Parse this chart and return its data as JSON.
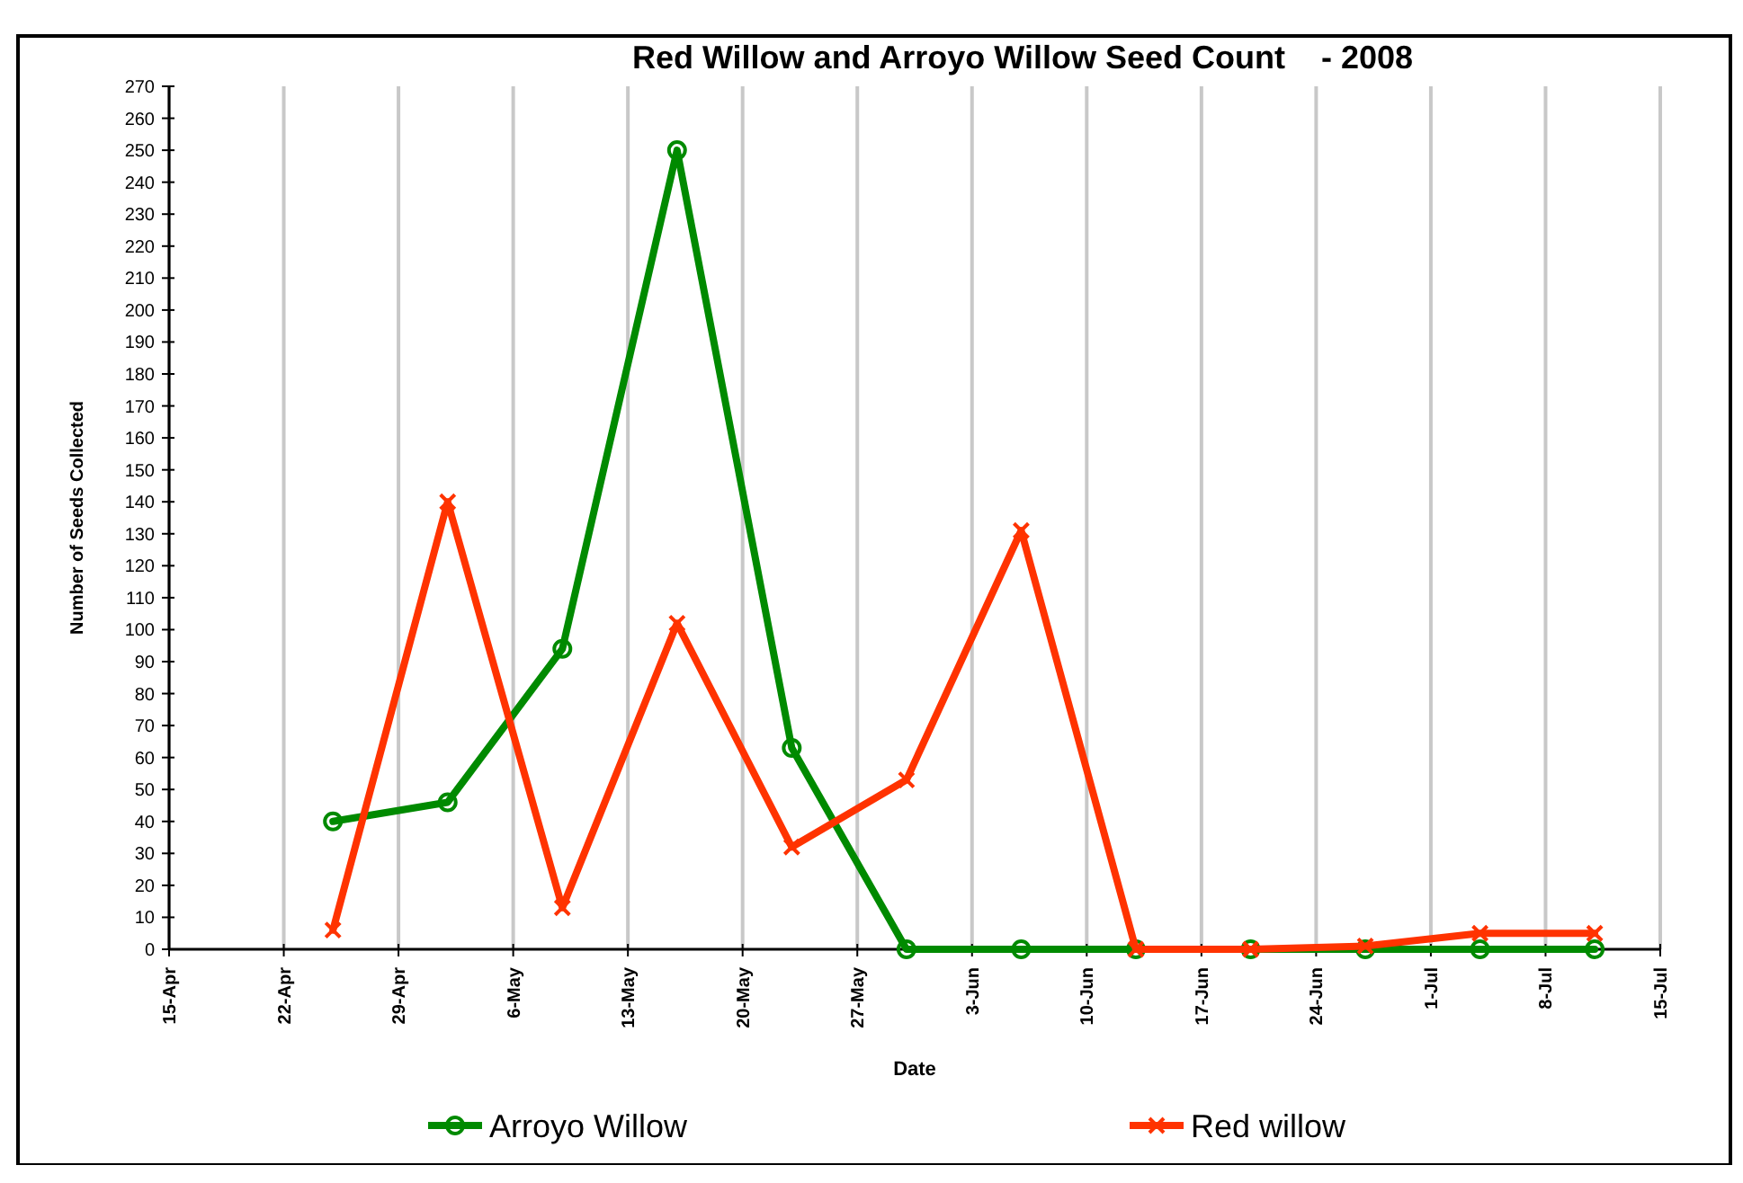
{
  "chart_data": {
    "type": "line",
    "title": "Red Willow and Arroyo Willow Seed Count    - 2008",
    "xlabel": "Date",
    "ylabel": "Number of Seeds Collected",
    "x": [
      "2008-04-25",
      "2008-05-02",
      "2008-05-09",
      "2008-05-16",
      "2008-05-23",
      "2008-05-30",
      "2008-06-06",
      "2008-06-13",
      "2008-06-20",
      "2008-06-27",
      "2008-07-04",
      "2008-07-11"
    ],
    "series": [
      {
        "name": "Arroyo Willow",
        "color": "#008a00",
        "marker": "circle",
        "values": [
          40,
          46,
          94,
          250,
          63,
          0,
          0,
          0,
          0,
          0,
          0,
          0
        ]
      },
      {
        "name": "Red willow",
        "color": "#ff3300",
        "marker": "cross",
        "values": [
          6,
          140,
          13,
          102,
          32,
          53,
          131,
          0,
          0,
          1,
          5,
          5
        ]
      }
    ],
    "xlim": [
      "2008-04-15",
      "2008-07-15"
    ],
    "xticks": [
      {
        "value": "2008-04-15",
        "label": "15-Apr"
      },
      {
        "value": "2008-04-22",
        "label": "22-Apr"
      },
      {
        "value": "2008-04-29",
        "label": "29-Apr"
      },
      {
        "value": "2008-05-06",
        "label": "6-May"
      },
      {
        "value": "2008-05-13",
        "label": "13-May"
      },
      {
        "value": "2008-05-20",
        "label": "20-May"
      },
      {
        "value": "2008-05-27",
        "label": "27-May"
      },
      {
        "value": "2008-06-03",
        "label": "3-Jun"
      },
      {
        "value": "2008-06-10",
        "label": "10-Jun"
      },
      {
        "value": "2008-06-17",
        "label": "17-Jun"
      },
      {
        "value": "2008-06-24",
        "label": "24-Jun"
      },
      {
        "value": "2008-07-01",
        "label": "1-Jul"
      },
      {
        "value": "2008-07-08",
        "label": "8-Jul"
      },
      {
        "value": "2008-07-15",
        "label": "15-Jul"
      }
    ],
    "ylim": [
      0,
      270
    ],
    "yticks": [
      0,
      10,
      20,
      30,
      40,
      50,
      60,
      70,
      80,
      90,
      100,
      110,
      120,
      130,
      140,
      150,
      160,
      170,
      180,
      190,
      200,
      210,
      220,
      230,
      240,
      250,
      260,
      270
    ],
    "grid": "x",
    "legend": "bottom",
    "line_style": "solid"
  }
}
